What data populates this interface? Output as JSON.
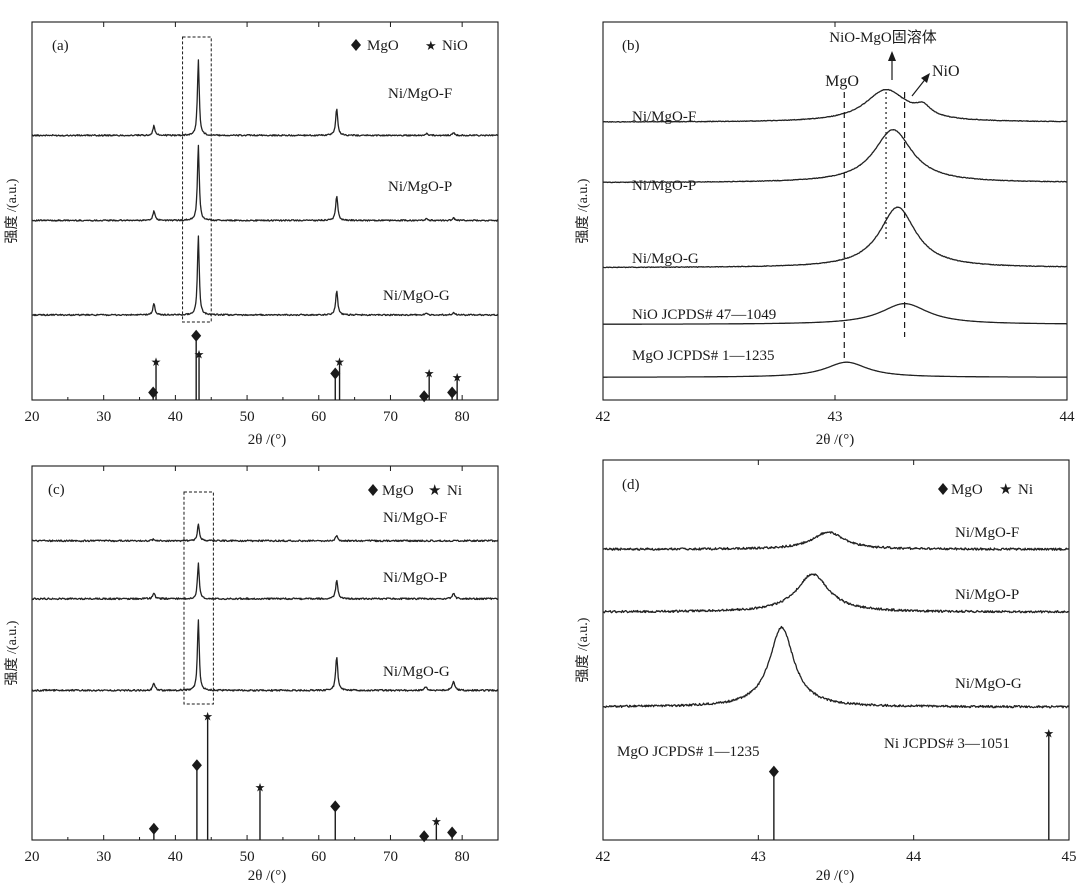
{
  "figure": {
    "y_axis_label": "强度 /(a.u.)",
    "x_axis_label": "2θ /(°)",
    "x_axis_symbol": "2θ",
    "x_axis_unit": " /(°)"
  },
  "chart_data": [
    {
      "id": "a",
      "type": "line",
      "panel_label": "(a)",
      "title": "",
      "xlabel": "2θ /(°)",
      "ylabel": "强度 /(a.u.)",
      "xlim": [
        20,
        85
      ],
      "xticks": [
        20,
        30,
        40,
        50,
        60,
        70,
        80
      ],
      "legend": [
        {
          "symbol": "diamond",
          "label": "MgO"
        },
        {
          "symbol": "star",
          "label": "NiO"
        }
      ],
      "series": [
        {
          "name": "Ni/MgO-F",
          "baseline": 0.7,
          "peaks": [
            [
              37.0,
              0.025,
              0.35
            ],
            [
              43.2,
              0.2,
              0.3
            ],
            [
              62.5,
              0.07,
              0.35
            ],
            [
              75.0,
              0.005,
              0.4
            ],
            [
              78.8,
              0.006,
              0.4
            ]
          ]
        },
        {
          "name": "Ni/MgO-P",
          "baseline": 0.475,
          "peaks": [
            [
              37.0,
              0.025,
              0.35
            ],
            [
              43.2,
              0.2,
              0.3
            ],
            [
              62.5,
              0.065,
              0.35
            ],
            [
              75.0,
              0.005,
              0.4
            ],
            [
              78.8,
              0.006,
              0.4
            ]
          ]
        },
        {
          "name": "Ni/MgO-G",
          "baseline": 0.225,
          "peaks": [
            [
              37.0,
              0.03,
              0.35
            ],
            [
              43.2,
              0.21,
              0.3
            ],
            [
              62.5,
              0.065,
              0.35
            ],
            [
              75.0,
              0.005,
              0.4
            ],
            [
              78.8,
              0.006,
              0.4
            ]
          ]
        }
      ],
      "reference_lines": [
        {
          "phase": "MgO",
          "marker": "diamond",
          "positions": [
            [
              36.9,
              0.02
            ],
            [
              42.9,
              0.17
            ],
            [
              62.3,
              0.07
            ],
            [
              74.7,
              0.01
            ],
            [
              78.6,
              0.02
            ]
          ]
        },
        {
          "phase": "NiO",
          "marker": "star",
          "positions": [
            [
              37.3,
              0.1
            ],
            [
              43.3,
              0.12
            ],
            [
              62.9,
              0.1
            ],
            [
              75.4,
              0.07
            ],
            [
              79.3,
              0.06
            ]
          ]
        }
      ],
      "highlight_range": [
        41.0,
        45.0
      ]
    },
    {
      "id": "b",
      "type": "line",
      "panel_label": "(b)",
      "title": "",
      "xlabel": "2θ /(°)",
      "ylabel": "强度 /(a.u.)",
      "xlim": [
        42,
        44
      ],
      "xticks": [
        42,
        43,
        44
      ],
      "series": [
        {
          "name": "Ni/MgO-F",
          "baseline": 0.735,
          "peaks": [
            [
              43.22,
              0.085,
              0.22
            ],
            [
              43.38,
              0.025,
              0.08
            ]
          ]
        },
        {
          "name": "Ni/MgO-P",
          "baseline": 0.575,
          "peaks": [
            [
              43.25,
              0.14,
              0.2
            ]
          ]
        },
        {
          "name": "Ni/MgO-G",
          "baseline": 0.35,
          "peaks": [
            [
              43.27,
              0.16,
              0.19
            ]
          ]
        },
        {
          "name": "NiO JCPDS# 47—1049",
          "baseline": 0.2,
          "peaks": [
            [
              43.3,
              0.055,
              0.25
            ]
          ]
        },
        {
          "name": "MgO JCPDS# 1—1235",
          "baseline": 0.06,
          "peaks": [
            [
              43.05,
              0.04,
              0.22
            ]
          ]
        }
      ],
      "annotations": [
        {
          "label": "MgO",
          "x": 43.04,
          "style": "dashed"
        },
        {
          "label": "NiO-MgO固溶体",
          "x": 43.22,
          "style": "dotted"
        },
        {
          "label": "NiO",
          "x": 43.3,
          "style": "dashed"
        }
      ]
    },
    {
      "id": "c",
      "type": "line",
      "panel_label": "(c)",
      "title": "",
      "xlabel": "2θ /(°)",
      "ylabel": "强度 /(a.u.)",
      "xlim": [
        20,
        85
      ],
      "xticks": [
        20,
        30,
        40,
        50,
        60,
        70,
        80
      ],
      "legend": [
        {
          "symbol": "diamond",
          "label": "MgO"
        },
        {
          "symbol": "star",
          "label": "Ni"
        }
      ],
      "series": [
        {
          "name": "Ni/MgO-F",
          "baseline": 0.8,
          "peaks": [
            [
              37.0,
              0.005,
              0.35
            ],
            [
              43.2,
              0.045,
              0.32
            ],
            [
              62.5,
              0.015,
              0.35
            ]
          ]
        },
        {
          "name": "Ni/MgO-P",
          "baseline": 0.645,
          "peaks": [
            [
              37.0,
              0.015,
              0.35
            ],
            [
              43.2,
              0.095,
              0.3
            ],
            [
              62.5,
              0.05,
              0.35
            ],
            [
              78.8,
              0.015,
              0.4
            ]
          ]
        },
        {
          "name": "Ni/MgO-G",
          "baseline": 0.4,
          "peaks": [
            [
              37.0,
              0.02,
              0.35
            ],
            [
              43.2,
              0.19,
              0.3
            ],
            [
              62.5,
              0.09,
              0.35
            ],
            [
              74.9,
              0.01,
              0.4
            ],
            [
              78.8,
              0.025,
              0.4
            ]
          ]
        }
      ],
      "reference_lines": [
        {
          "phase": "MgO",
          "marker": "diamond",
          "positions": [
            [
              37.0,
              0.03
            ],
            [
              43.0,
              0.2
            ],
            [
              62.3,
              0.09
            ],
            [
              74.7,
              0.01
            ],
            [
              78.6,
              0.02
            ]
          ]
        },
        {
          "phase": "Ni",
          "marker": "star",
          "positions": [
            [
              44.5,
              0.33
            ],
            [
              51.8,
              0.14
            ],
            [
              76.4,
              0.05
            ]
          ]
        }
      ],
      "highlight_range": [
        41.2,
        45.3
      ]
    },
    {
      "id": "d",
      "type": "line",
      "panel_label": "(d)",
      "title": "",
      "xlabel": "2θ /(°)",
      "ylabel": "强度 /(a.u.)",
      "xlim": [
        42,
        45
      ],
      "xticks": [
        42,
        43,
        44,
        45
      ],
      "legend": [
        {
          "symbol": "diamond",
          "label": "MgO"
        },
        {
          "symbol": "star",
          "label": "Ni"
        }
      ],
      "series": [
        {
          "name": "Ni/MgO-F",
          "baseline": 0.765,
          "peaks": [
            [
              43.45,
              0.045,
              0.25
            ]
          ]
        },
        {
          "name": "Ni/MgO-P",
          "baseline": 0.6,
          "peaks": [
            [
              43.35,
              0.1,
              0.25
            ]
          ]
        },
        {
          "name": "Ni/MgO-G",
          "baseline": 0.35,
          "peaks": [
            [
              43.15,
              0.21,
              0.19
            ]
          ]
        }
      ],
      "reference_lines": [
        {
          "phase": "MgO",
          "marker": "diamond",
          "label": "MgO JCPDS# 1—1235",
          "positions": [
            [
              43.1,
              0.18
            ]
          ]
        },
        {
          "phase": "Ni",
          "marker": "star",
          "label": "Ni JCPDS# 3—1051",
          "positions": [
            [
              44.87,
              0.28
            ]
          ]
        }
      ]
    }
  ]
}
